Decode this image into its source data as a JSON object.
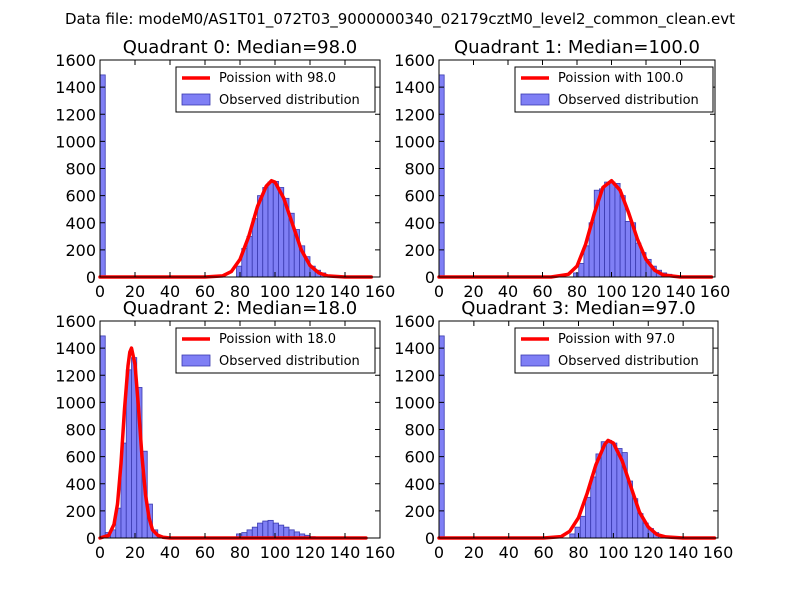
{
  "suptitle": "Data file: modeM0/AS1T01_072T03_9000000340_02179cztM0_level2_common_clean.evt",
  "colors": {
    "bar_fill": "#7f7ff5",
    "bar_edge": "#3a3ab0",
    "fit_line": "#ff0000"
  },
  "chart_data": [
    {
      "type": "bar",
      "title": "Quadrant 0: Median=98.0",
      "xlim": [
        0,
        160
      ],
      "ylim": [
        0,
        1600
      ],
      "xticks": [
        0,
        20,
        40,
        60,
        80,
        100,
        120,
        140,
        160
      ],
      "yticks": [
        0,
        200,
        400,
        600,
        800,
        1000,
        1200,
        1400,
        1600
      ],
      "legend": {
        "line_label": "Poission with 98.0",
        "bar_label": "Observed distribution"
      },
      "bin_width": 3,
      "bars": [
        {
          "x": 0,
          "y": 1490
        },
        {
          "x": 78,
          "y": 80
        },
        {
          "x": 81,
          "y": 210
        },
        {
          "x": 84,
          "y": 300
        },
        {
          "x": 87,
          "y": 430
        },
        {
          "x": 90,
          "y": 600
        },
        {
          "x": 93,
          "y": 660
        },
        {
          "x": 96,
          "y": 700
        },
        {
          "x": 99,
          "y": 705
        },
        {
          "x": 102,
          "y": 660
        },
        {
          "x": 105,
          "y": 580
        },
        {
          "x": 108,
          "y": 470
        },
        {
          "x": 111,
          "y": 350
        },
        {
          "x": 114,
          "y": 230
        },
        {
          "x": 117,
          "y": 150
        },
        {
          "x": 120,
          "y": 80
        },
        {
          "x": 123,
          "y": 50
        },
        {
          "x": 126,
          "y": 30
        },
        {
          "x": 129,
          "y": 15
        }
      ],
      "fit": {
        "x": [
          0,
          60,
          70,
          75,
          80,
          85,
          90,
          95,
          98,
          100,
          105,
          110,
          115,
          120,
          125,
          130,
          140,
          155
        ],
        "y": [
          0,
          0,
          8,
          40,
          130,
          300,
          520,
          670,
          710,
          700,
          580,
          390,
          200,
          85,
          30,
          8,
          0,
          0
        ]
      }
    },
    {
      "type": "bar",
      "title": "Quadrant 1: Median=100.0",
      "xlim": [
        0,
        160
      ],
      "ylim": [
        0,
        1600
      ],
      "xticks": [
        0,
        20,
        40,
        60,
        80,
        100,
        120,
        140,
        160
      ],
      "yticks": [
        0,
        200,
        400,
        600,
        800,
        1000,
        1200,
        1400,
        1600
      ],
      "legend": {
        "line_label": "Poission with 100.0",
        "bar_label": "Observed distribution"
      },
      "bin_width": 3,
      "bars": [
        {
          "x": 0,
          "y": 1490
        },
        {
          "x": 78,
          "y": 30
        },
        {
          "x": 81,
          "y": 100
        },
        {
          "x": 84,
          "y": 230
        },
        {
          "x": 87,
          "y": 400
        },
        {
          "x": 90,
          "y": 640
        },
        {
          "x": 93,
          "y": 650
        },
        {
          "x": 96,
          "y": 700
        },
        {
          "x": 99,
          "y": 700
        },
        {
          "x": 102,
          "y": 690
        },
        {
          "x": 105,
          "y": 600
        },
        {
          "x": 108,
          "y": 410
        },
        {
          "x": 111,
          "y": 400
        },
        {
          "x": 114,
          "y": 250
        },
        {
          "x": 117,
          "y": 180
        },
        {
          "x": 120,
          "y": 130
        },
        {
          "x": 123,
          "y": 80
        },
        {
          "x": 126,
          "y": 50
        },
        {
          "x": 129,
          "y": 30
        },
        {
          "x": 132,
          "y": 20
        }
      ],
      "fit": {
        "x": [
          0,
          65,
          75,
          80,
          85,
          90,
          95,
          100,
          105,
          110,
          115,
          120,
          125,
          130,
          140,
          158
        ],
        "y": [
          0,
          0,
          20,
          80,
          240,
          470,
          660,
          710,
          640,
          470,
          280,
          130,
          50,
          15,
          0,
          0
        ]
      }
    },
    {
      "type": "bar",
      "title": "Quadrant 2: Median=18.0",
      "xlim": [
        0,
        160
      ],
      "ylim": [
        0,
        1600
      ],
      "xticks": [
        0,
        20,
        40,
        60,
        80,
        100,
        120,
        140,
        160
      ],
      "yticks": [
        0,
        200,
        400,
        600,
        800,
        1000,
        1200,
        1400,
        1600
      ],
      "legend": {
        "line_label": "Poission with 18.0",
        "bar_label": "Observed distribution"
      },
      "bin_width": 3,
      "bars": [
        {
          "x": 0,
          "y": 1490
        },
        {
          "x": 3,
          "y": 40
        },
        {
          "x": 6,
          "y": 60
        },
        {
          "x": 9,
          "y": 220
        },
        {
          "x": 12,
          "y": 700
        },
        {
          "x": 15,
          "y": 1240
        },
        {
          "x": 18,
          "y": 1330
        },
        {
          "x": 21,
          "y": 1110
        },
        {
          "x": 24,
          "y": 640
        },
        {
          "x": 27,
          "y": 250
        },
        {
          "x": 30,
          "y": 60
        },
        {
          "x": 33,
          "y": 15
        },
        {
          "x": 78,
          "y": 30
        },
        {
          "x": 81,
          "y": 40
        },
        {
          "x": 84,
          "y": 60
        },
        {
          "x": 87,
          "y": 80
        },
        {
          "x": 90,
          "y": 110
        },
        {
          "x": 93,
          "y": 125
        },
        {
          "x": 96,
          "y": 130
        },
        {
          "x": 99,
          "y": 110
        },
        {
          "x": 102,
          "y": 95
        },
        {
          "x": 105,
          "y": 80
        },
        {
          "x": 108,
          "y": 60
        },
        {
          "x": 111,
          "y": 45
        },
        {
          "x": 114,
          "y": 30
        },
        {
          "x": 117,
          "y": 20
        },
        {
          "x": 120,
          "y": 10
        }
      ],
      "fit": {
        "x": [
          0,
          5,
          8,
          10,
          12,
          14,
          16,
          17,
          18,
          20,
          22,
          24,
          26,
          28,
          30,
          33,
          36,
          40,
          152
        ],
        "y": [
          0,
          20,
          100,
          250,
          550,
          950,
          1270,
          1370,
          1400,
          1280,
          960,
          600,
          320,
          150,
          60,
          20,
          5,
          0,
          0
        ]
      }
    },
    {
      "type": "bar",
      "title": "Quadrant 3: Median=97.0",
      "xlim": [
        0,
        160
      ],
      "ylim": [
        0,
        1600
      ],
      "xticks": [
        0,
        20,
        40,
        60,
        80,
        100,
        120,
        140,
        160
      ],
      "yticks": [
        0,
        200,
        400,
        600,
        800,
        1000,
        1200,
        1400,
        1600
      ],
      "legend": {
        "line_label": "Poission with 97.0",
        "bar_label": "Observed distribution"
      },
      "bin_width": 3,
      "bars": [
        {
          "x": 0,
          "y": 1490
        },
        {
          "x": 75,
          "y": 30
        },
        {
          "x": 78,
          "y": 80
        },
        {
          "x": 81,
          "y": 160
        },
        {
          "x": 84,
          "y": 300
        },
        {
          "x": 87,
          "y": 450
        },
        {
          "x": 90,
          "y": 620
        },
        {
          "x": 93,
          "y": 710
        },
        {
          "x": 96,
          "y": 720
        },
        {
          "x": 99,
          "y": 700
        },
        {
          "x": 102,
          "y": 660
        },
        {
          "x": 105,
          "y": 630
        },
        {
          "x": 108,
          "y": 420
        },
        {
          "x": 111,
          "y": 290
        },
        {
          "x": 114,
          "y": 180
        },
        {
          "x": 117,
          "y": 110
        },
        {
          "x": 120,
          "y": 70
        },
        {
          "x": 123,
          "y": 40
        },
        {
          "x": 126,
          "y": 20
        }
      ],
      "fit": {
        "x": [
          0,
          60,
          70,
          75,
          80,
          85,
          90,
          95,
          97,
          100,
          105,
          110,
          115,
          120,
          125,
          130,
          140,
          158
        ],
        "y": [
          0,
          0,
          10,
          50,
          150,
          330,
          540,
          690,
          720,
          700,
          570,
          380,
          190,
          80,
          25,
          8,
          0,
          0
        ]
      }
    }
  ]
}
